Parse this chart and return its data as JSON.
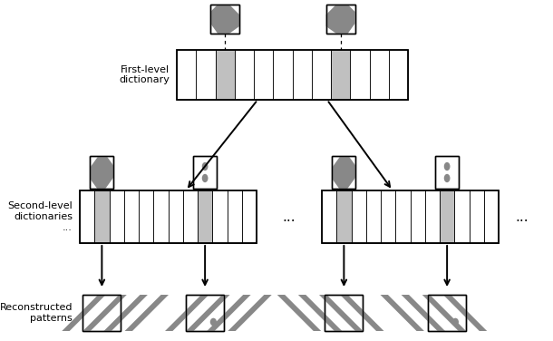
{
  "fig_width": 6.1,
  "fig_height": 3.76,
  "bg_color": "#ffffff",
  "text_color": "#000000",
  "line_color": "#000000",
  "gray_color": "#c0c0c0",
  "dark_gray": "#888888",
  "label_first": "First-level\ndictionary",
  "label_second": "Second-level\ndictionaries\n...",
  "label_reconstructed": "Reconstructed\npatterns"
}
